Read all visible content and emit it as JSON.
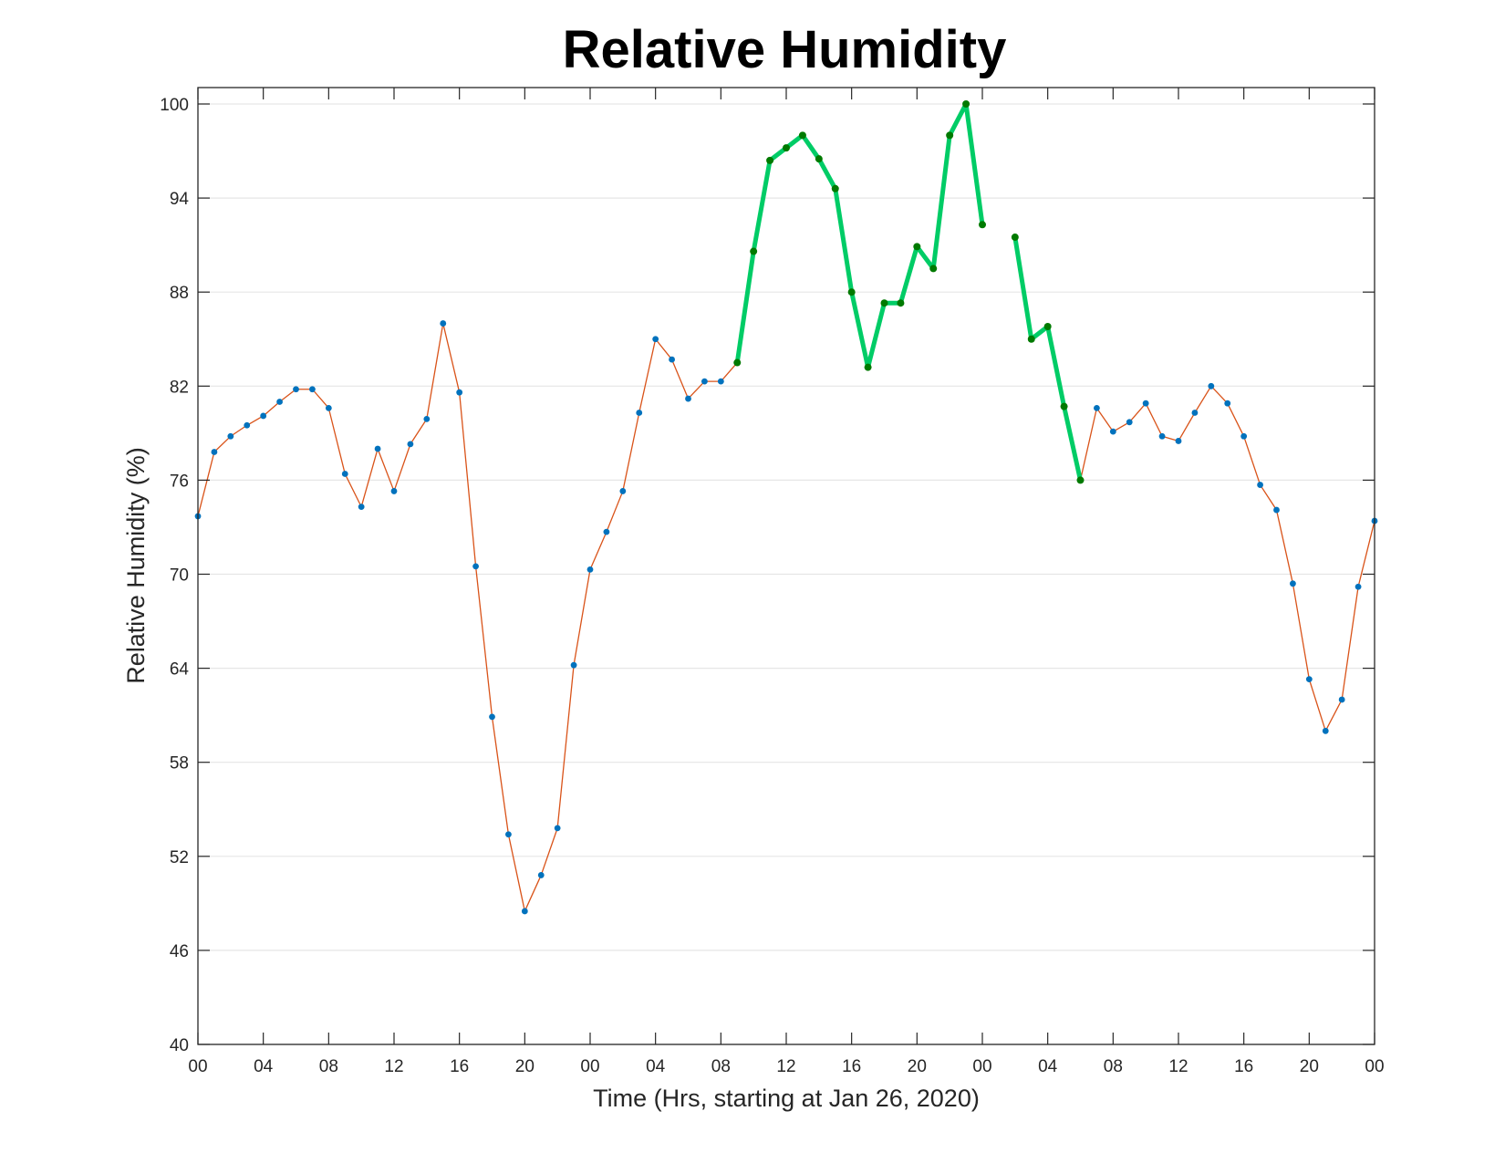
{
  "chart_data": {
    "type": "line",
    "title": "Relative Humidity",
    "xlabel": "Time (Hrs, starting at Jan 26, 2020)",
    "ylabel": "Relative Humidity (%)",
    "x_unit": "hours",
    "xlim": [
      0,
      72
    ],
    "ylim": [
      40,
      100
    ],
    "yticks": [
      40,
      46,
      52,
      58,
      64,
      70,
      76,
      82,
      88,
      94,
      100
    ],
    "xtick_values": [
      0,
      4,
      8,
      12,
      16,
      20,
      24,
      28,
      32,
      36,
      40,
      44,
      48,
      52,
      56,
      60,
      64,
      68,
      72
    ],
    "xtick_labels": [
      "00",
      "04",
      "08",
      "12",
      "16",
      "20",
      "00",
      "04",
      "08",
      "12",
      "16",
      "20",
      "00",
      "04",
      "08",
      "12",
      "16",
      "20",
      "00"
    ],
    "grid": "horizontal",
    "series": [
      {
        "role": "base",
        "line_color": "#D95319",
        "marker_color": "#0072BD",
        "x": [
          0,
          1,
          2,
          3,
          4,
          5,
          6,
          7,
          8,
          9,
          10,
          11,
          12,
          13,
          14,
          15,
          16,
          17,
          18,
          19,
          20,
          21,
          22,
          23,
          24,
          25,
          26,
          27,
          28,
          29,
          30,
          31,
          32,
          33,
          34,
          35,
          36,
          37,
          38,
          39,
          40,
          41,
          42,
          43,
          44,
          45,
          46,
          47,
          48,
          49,
          50,
          51,
          52,
          53,
          54,
          55,
          56,
          57,
          58,
          59,
          60,
          61,
          62,
          63,
          64,
          65,
          66,
          67,
          68,
          69,
          70,
          71,
          72
        ],
        "y": [
          73.7,
          77.8,
          78.8,
          79.5,
          80.1,
          81.0,
          81.8,
          81.8,
          80.6,
          76.4,
          74.3,
          78.0,
          75.3,
          78.3,
          79.9,
          86.0,
          81.6,
          70.5,
          60.9,
          53.4,
          48.5,
          50.8,
          53.8,
          64.2,
          70.3,
          72.7,
          75.3,
          80.3,
          85.0,
          83.7,
          81.2,
          82.3,
          82.3,
          83.5,
          90.6,
          96.4,
          97.2,
          98.0,
          96.5,
          94.6,
          88.0,
          83.2,
          87.3,
          87.3,
          90.9,
          89.5,
          98.0,
          100.0,
          92.3,
          null,
          91.5,
          85.0,
          85.8,
          80.7,
          76.0,
          80.6,
          79.1,
          79.7,
          80.9,
          78.8,
          78.5,
          80.3,
          82.0,
          80.9,
          78.8,
          75.7,
          74.1,
          69.4,
          63.3,
          60.0,
          62.0,
          69.2,
          73.4
        ]
      },
      {
        "role": "highlight",
        "line_color": "#00CC66",
        "marker_color": "#007A00",
        "x": [
          33,
          34,
          35,
          36,
          37,
          38,
          39,
          40,
          41,
          42,
          43,
          44,
          45,
          46,
          47,
          48,
          49,
          50,
          51,
          52,
          53,
          54
        ],
        "y": [
          83.5,
          90.6,
          96.4,
          97.2,
          98.0,
          96.5,
          94.6,
          88.0,
          83.2,
          87.3,
          87.3,
          90.9,
          89.5,
          98.0,
          100.0,
          92.3,
          null,
          91.5,
          85.0,
          85.8,
          80.7,
          76.0
        ]
      }
    ]
  }
}
